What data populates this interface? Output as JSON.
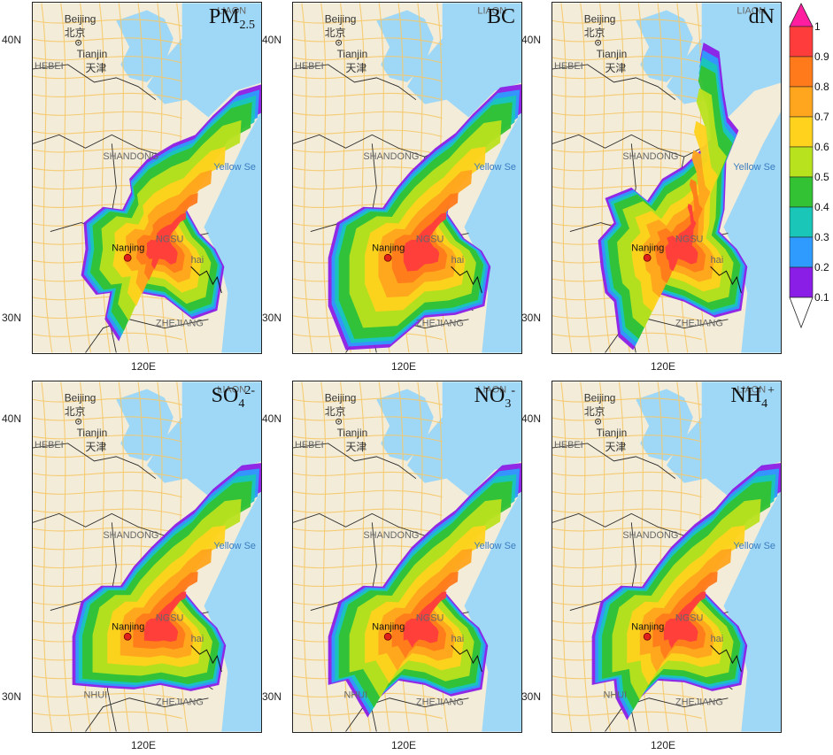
{
  "panels": [
    {
      "label_main": "PM",
      "label_sub": "2.5",
      "label_sup": ""
    },
    {
      "label_main": "BC",
      "label_sub": "",
      "label_sup": ""
    },
    {
      "label_main": "dN",
      "label_sub": "",
      "label_sup": ""
    },
    {
      "label_main": "SO",
      "label_sub": "4",
      "label_sup": "2-"
    },
    {
      "label_main": "NO",
      "label_sub": "3",
      "label_sup": "-"
    },
    {
      "label_main": "NH",
      "label_sub": "4",
      "label_sup": "+"
    }
  ],
  "map_labels": {
    "beijing": "Beijing",
    "beijing_cn": "北京",
    "tianjin": "Tianjin",
    "tianjin_cn": "天津",
    "hebei": "HEBEI",
    "liaoning": "LIAON",
    "shandong": "SHANDONG",
    "jiangsu": "NGSU",
    "anhui": "NHUI",
    "zhejiang": "ZHEJIANG",
    "yellow_sea": "Yellow Se",
    "shanghai": "hai",
    "nanjing": "Nanjing"
  },
  "axes": {
    "lat_top": "40N",
    "lat_bottom": "30N",
    "lon": "120E"
  },
  "colorbar": {
    "ticks": [
      "1",
      "0.9",
      "0.8",
      "0.7",
      "0.6",
      "0.5",
      "0.4",
      "0.3",
      "0.2",
      "0.1"
    ],
    "colors": [
      "#ff3c3c",
      "#ff7a1a",
      "#ffa51e",
      "#ffd21e",
      "#b9e21e",
      "#33c233",
      "#19c6b8",
      "#2f9bff",
      "#8a1ee6",
      "#ffffff"
    ],
    "top_arrow_color": "#ff1ea0"
  },
  "colors": {
    "land": "#f3ecd8",
    "sea": "#9fd8f7",
    "road": "#f6c86a",
    "border": "#2b2b2b",
    "marker": "#e0201a"
  }
}
